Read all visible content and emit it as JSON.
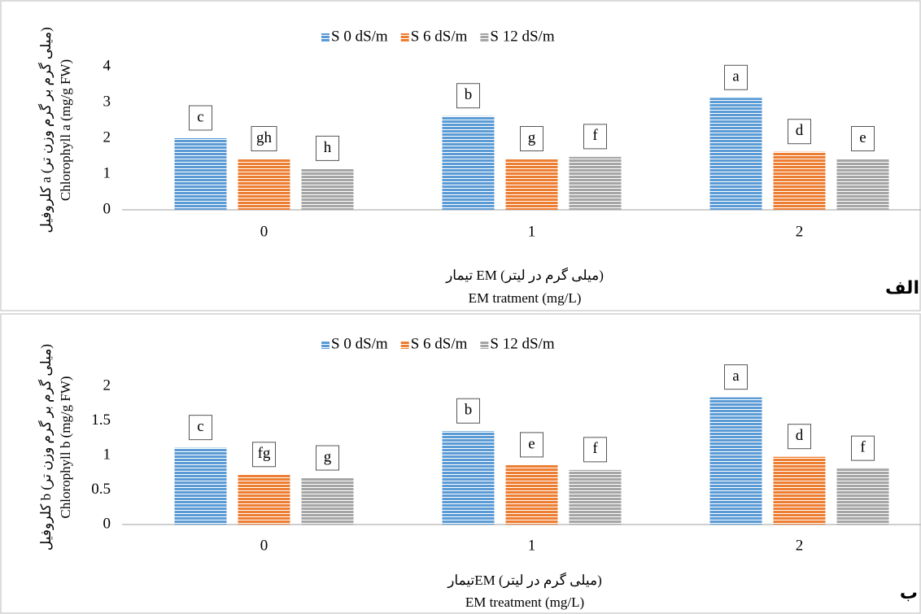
{
  "chart_data": [
    {
      "type": "bar",
      "panel_label": "الف",
      "y_label": [
        "کلروفیل a (میلی گرم بر گرم وزن تر)",
        "Chlorophyll a (mg/g FW)"
      ],
      "x_label": [
        "تیمار EM (میلی گرم در لیتر)",
        "EM tratment (mg/L)"
      ],
      "categories": [
        "0",
        "1",
        "2"
      ],
      "ylim": [
        0,
        4
      ],
      "yticks": [
        0,
        1,
        2,
        3,
        4
      ],
      "series": [
        {
          "name": "S 0 dS/m",
          "color": "#5b9bd5",
          "values": [
            2.0,
            2.62,
            3.13
          ],
          "letters": [
            "c",
            "b",
            "a"
          ]
        },
        {
          "name": "S 6 dS/m",
          "color": "#ed7d31",
          "values": [
            1.42,
            1.42,
            1.62
          ],
          "letters": [
            "gh",
            "g",
            "d"
          ]
        },
        {
          "name": "S 12 dS/m",
          "color": "#a5a5a5",
          "values": [
            1.15,
            1.48,
            1.42
          ],
          "letters": [
            "h",
            "f",
            "e"
          ]
        }
      ]
    },
    {
      "type": "bar",
      "panel_label": "ب",
      "y_label": [
        "کلروفیل b (میلی گرم بر گرم وزن تر)",
        "Chlorophyll b (mg/g FW)"
      ],
      "x_label": [
        "تیمارEM (میلی گرم در لیتر)",
        "EM treatment (mg/L)"
      ],
      "categories": [
        "0",
        "1",
        "2"
      ],
      "ylim": [
        0,
        2
      ],
      "yticks": [
        0,
        0.5,
        1,
        1.5,
        2
      ],
      "series": [
        {
          "name": "S 0 dS/m",
          "color": "#5b9bd5",
          "values": [
            1.11,
            1.35,
            1.84
          ],
          "letters": [
            "c",
            "b",
            "a"
          ]
        },
        {
          "name": "S 6 dS/m",
          "color": "#ed7d31",
          "values": [
            0.72,
            0.86,
            0.98
          ],
          "letters": [
            "fg",
            "e",
            "d"
          ]
        },
        {
          "name": "S 12 dS/m",
          "color": "#a5a5a5",
          "values": [
            0.67,
            0.79,
            0.81
          ],
          "letters": [
            "g",
            "f",
            "f"
          ]
        }
      ]
    }
  ]
}
